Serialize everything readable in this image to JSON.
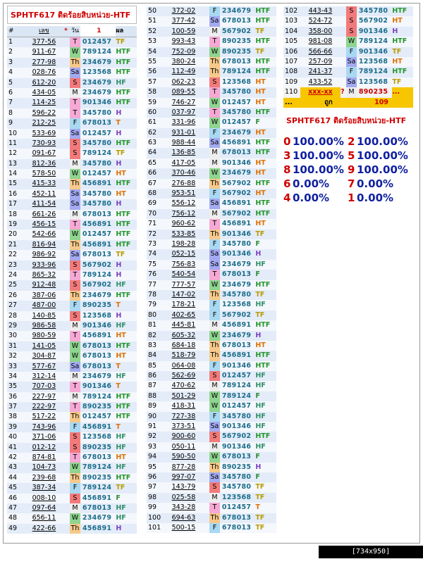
{
  "title": "SPHTF617 ติดร้อยสิบหน่วย-HTF",
  "header": [
    "#",
    "เลข",
    "*",
    "วัน",
    "1",
    "ผล"
  ],
  "columns": [
    [
      [
        1,
        "377-56",
        "T",
        "012457",
        "TF"
      ],
      [
        2,
        "911-67",
        "W",
        "789124",
        "HTF"
      ],
      [
        3,
        "277-98",
        "Th",
        "234679",
        "HTF"
      ],
      [
        4,
        "028-76",
        "Sa",
        "123568",
        "HTF"
      ],
      [
        5,
        "612-20",
        "S",
        "234679",
        "HF"
      ],
      [
        6,
        "434-05",
        "M",
        "234679",
        "HTF"
      ],
      [
        7,
        "114-25",
        "T",
        "901346",
        "HTF"
      ],
      [
        8,
        "596-22",
        "T",
        "345780",
        "H"
      ],
      [
        9,
        "212-25",
        "F",
        "678013",
        "T"
      ],
      [
        10,
        "533-69",
        "Sa",
        "012457",
        "H"
      ],
      [
        11,
        "730-93",
        "S",
        "345780",
        "HTF"
      ],
      [
        12,
        "091-67",
        "S",
        "789124",
        "TF"
      ],
      [
        13,
        "812-36",
        "M",
        "345780",
        "H"
      ],
      [
        14,
        "578-50",
        "W",
        "012457",
        "HT"
      ],
      [
        15,
        "415-33",
        "Th",
        "456891",
        "HTF"
      ],
      [
        16,
        "452-11",
        "Sa",
        "345780",
        "HT"
      ],
      [
        17,
        "411-54",
        "Sa",
        "345780",
        "H"
      ],
      [
        18,
        "661-26",
        "M",
        "678013",
        "HTF"
      ],
      [
        19,
        "456-15",
        "T",
        "456891",
        "HTF"
      ],
      [
        20,
        "542-66",
        "W",
        "012457",
        "HTF"
      ],
      [
        21,
        "816-94",
        "Th",
        "456891",
        "HTF"
      ],
      [
        22,
        "986-92",
        "Sa",
        "678013",
        "TF"
      ],
      [
        23,
        "933-96",
        "S",
        "567902",
        "H"
      ],
      [
        24,
        "865-32",
        "T",
        "789124",
        "H"
      ],
      [
        25,
        "912-48",
        "S",
        "567902",
        "HF"
      ],
      [
        26,
        "387-06",
        "Th",
        "234679",
        "HTF"
      ],
      [
        27,
        "487-00",
        "F",
        "890235",
        "T"
      ],
      [
        28,
        "140-85",
        "S",
        "123568",
        "H"
      ],
      [
        29,
        "986-58",
        "M",
        "901346",
        "HF"
      ],
      [
        30,
        "980-59",
        "T",
        "456891",
        "HT"
      ],
      [
        31,
        "141-05",
        "W",
        "678013",
        "HTF"
      ],
      [
        32,
        "304-87",
        "W",
        "678013",
        "HT"
      ],
      [
        33,
        "577-67",
        "Sa",
        "678013",
        "T"
      ],
      [
        34,
        "312-14",
        "M",
        "234679",
        "HF"
      ],
      [
        35,
        "707-03",
        "T",
        "901346",
        "T"
      ],
      [
        36,
        "227-97",
        "M",
        "789124",
        "HTF"
      ],
      [
        37,
        "222-97",
        "T",
        "890235",
        "HTF"
      ],
      [
        38,
        "517-22",
        "Th",
        "012457",
        "HTF"
      ],
      [
        39,
        "743-96",
        "F",
        "456891",
        "T"
      ],
      [
        40,
        "371-06",
        "S",
        "123568",
        "HF"
      ],
      [
        41,
        "012-12",
        "S",
        "890235",
        "HF"
      ],
      [
        42,
        "874-81",
        "T",
        "678013",
        "HT"
      ],
      [
        43,
        "104-73",
        "W",
        "789124",
        "HF"
      ],
      [
        44,
        "239-68",
        "Th",
        "890235",
        "HTF"
      ],
      [
        45,
        "387-34",
        "F",
        "789124",
        "TF"
      ],
      [
        46,
        "008-10",
        "S",
        "456891",
        "F"
      ],
      [
        47,
        "097-64",
        "M",
        "678013",
        "HF"
      ],
      [
        48,
        "656-11",
        "W",
        "234679",
        "HF"
      ],
      [
        49,
        "422-66",
        "Th",
        "456891",
        "H"
      ]
    ],
    [
      [
        50,
        "372-02",
        "F",
        "234679",
        "HTF"
      ],
      [
        51,
        "377-42",
        "Sa",
        "678013",
        "HTF"
      ],
      [
        52,
        "100-59",
        "M",
        "567902",
        "TF"
      ],
      [
        53,
        "993-43",
        "T",
        "890235",
        "HTF"
      ],
      [
        54,
        "752-09",
        "W",
        "890235",
        "TF"
      ],
      [
        55,
        "380-24",
        "Th",
        "678013",
        "HTF"
      ],
      [
        56,
        "112-49",
        "Th",
        "789124",
        "HTF"
      ],
      [
        57,
        "062-23",
        "S",
        "123568",
        "HT"
      ],
      [
        58,
        "089-55",
        "T",
        "345780",
        "HT"
      ],
      [
        59,
        "746-27",
        "W",
        "012457",
        "HT"
      ],
      [
        60,
        "037-97",
        "T",
        "345780",
        "HTF"
      ],
      [
        61,
        "331-96",
        "W",
        "012457",
        "F"
      ],
      [
        62,
        "931-01",
        "F",
        "234679",
        "HT"
      ],
      [
        63,
        "988-44",
        "Sa",
        "456891",
        "HTF"
      ],
      [
        64,
        "136-85",
        "M",
        "678013",
        "HTF"
      ],
      [
        65,
        "417-05",
        "M",
        "901346",
        "HT"
      ],
      [
        66,
        "370-46",
        "W",
        "234679",
        "HT"
      ],
      [
        67,
        "276-88",
        "Th",
        "567902",
        "HTF"
      ],
      [
        68,
        "953-51",
        "F",
        "567902",
        "HT"
      ],
      [
        69,
        "556-12",
        "Sa",
        "456891",
        "HTF"
      ],
      [
        70,
        "756-12",
        "M",
        "567902",
        "HTF"
      ],
      [
        71,
        "960-62",
        "T",
        "456891",
        "HT"
      ],
      [
        72,
        "533-85",
        "Th",
        "901346",
        "TF"
      ],
      [
        73,
        "198-28",
        "F",
        "345780",
        "F"
      ],
      [
        74,
        "052-15",
        "Sa",
        "901346",
        "H"
      ],
      [
        75,
        "756-83",
        "Sa",
        "234679",
        "HF"
      ],
      [
        76,
        "540-54",
        "T",
        "678013",
        "F"
      ],
      [
        77,
        "777-57",
        "W",
        "234679",
        "HTF"
      ],
      [
        78,
        "147-02",
        "Th",
        "345780",
        "TF"
      ],
      [
        79,
        "178-21",
        "F",
        "123568",
        "HF"
      ],
      [
        80,
        "402-65",
        "F",
        "567902",
        "TF"
      ],
      [
        81,
        "445-81",
        "M",
        "456891",
        "HTF"
      ],
      [
        82,
        "605-32",
        "W",
        "234679",
        "H"
      ],
      [
        83,
        "684-18",
        "Th",
        "678013",
        "HT"
      ],
      [
        84,
        "518-79",
        "Th",
        "456891",
        "HTF"
      ],
      [
        85,
        "064-08",
        "F",
        "901346",
        "HTF"
      ],
      [
        86,
        "562-69",
        "S",
        "012457",
        "HF"
      ],
      [
        87,
        "470-62",
        "M",
        "789124",
        "HF"
      ],
      [
        88,
        "501-29",
        "W",
        "789124",
        "F"
      ],
      [
        89,
        "418-31",
        "W",
        "012457",
        "HF"
      ],
      [
        90,
        "727-38",
        "F",
        "345780",
        "HF"
      ],
      [
        91,
        "373-51",
        "Sa",
        "901346",
        "HF"
      ],
      [
        92,
        "900-60",
        "S",
        "567902",
        "HTF"
      ],
      [
        93,
        "050-11",
        "M",
        "901346",
        "HF"
      ],
      [
        94,
        "590-50",
        "W",
        "678013",
        "F"
      ],
      [
        95,
        "877-28",
        "Th",
        "890235",
        "H"
      ],
      [
        96,
        "997-07",
        "Sa",
        "345780",
        "F"
      ],
      [
        97,
        "143-79",
        "S",
        "345780",
        "TF"
      ],
      [
        98,
        "025-58",
        "M",
        "123568",
        "TF"
      ],
      [
        99,
        "343-28",
        "T",
        "012457",
        "T"
      ],
      [
        100,
        "694-63",
        "Th",
        "678013",
        "TF"
      ],
      [
        101,
        "500-15",
        "F",
        "678013",
        "TF"
      ]
    ],
    [
      [
        102,
        "443-43",
        "S",
        "345780",
        "HTF"
      ],
      [
        103,
        "524-72",
        "S",
        "567902",
        "HT"
      ],
      [
        104,
        "358-00",
        "S",
        "901346",
        "H"
      ],
      [
        105,
        "981-08",
        "W",
        "789124",
        "HTF"
      ],
      [
        106,
        "566-66",
        "F",
        "901346",
        "TF"
      ],
      [
        107,
        "257-09",
        "Sa",
        "123568",
        "HT"
      ],
      [
        108,
        "241-37",
        "F",
        "789124",
        "HTF"
      ],
      [
        109,
        "433-52",
        "Sa",
        "123568",
        "TF"
      ]
    ]
  ],
  "pending": {
    "n": 110,
    "num": "xxx-xx",
    "mark": "?",
    "day": "M",
    "digits": "890235",
    "res": "..."
  },
  "total": {
    "dots": "...",
    "label": "ถูก",
    "count": 109
  },
  "stats": [
    [
      "0",
      "100.00%",
      "2",
      "100.00%"
    ],
    [
      "3",
      "100.00%",
      "5",
      "100.00%"
    ],
    [
      "8",
      "100.00%",
      "9",
      "100.00%"
    ],
    [
      "6",
      "0.00%",
      "7",
      "0.00%"
    ],
    [
      "4",
      "0.00%",
      "1",
      "0.00%"
    ]
  ],
  "footer": "[734x950] http://upic.me/"
}
